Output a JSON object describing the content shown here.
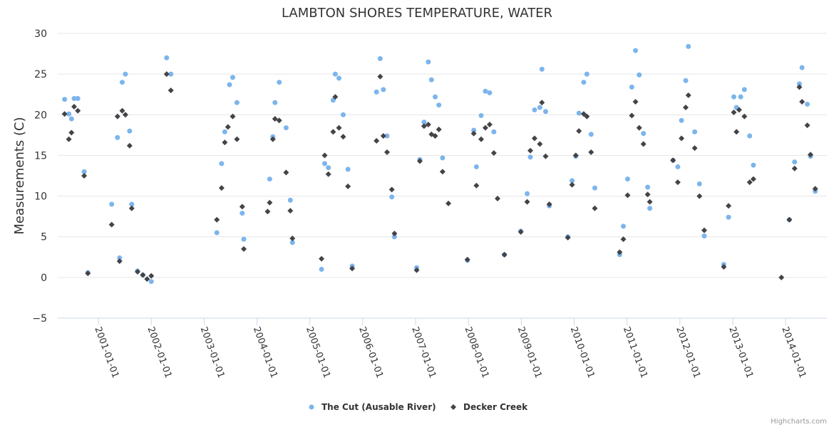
{
  "chart_data": {
    "type": "scatter",
    "title": "LAMBTON SHORES TEMPERATURE, WATER",
    "xlabel": "",
    "ylabel": "Measurements (C)",
    "ylim": [
      -5,
      30
    ],
    "yticks": [
      "30",
      "25",
      "20",
      "15",
      "10",
      "5",
      "0",
      "−5"
    ],
    "ytick_values": [
      30,
      25,
      20,
      15,
      10,
      5,
      0,
      -5
    ],
    "xlim": [
      2000.23,
      2014.78
    ],
    "xticks": [
      "2001-01-01",
      "2002-01-01",
      "2003-01-01",
      "2004-01-01",
      "2005-01-01",
      "2006-01-01",
      "2007-01-01",
      "2008-01-01",
      "2009-01-01",
      "2010-01-01",
      "2011-01-01",
      "2012-01-01",
      "2013-01-01",
      "2014-01-01"
    ],
    "xtick_values": [
      2001,
      2002,
      2003,
      2004,
      2005,
      2006,
      2007,
      2008,
      2009,
      2010,
      2011,
      2012,
      2013,
      2014
    ],
    "grid": true,
    "legend_position": "bottom-center",
    "credits": "Highcharts.com",
    "series": [
      {
        "name": "The Cut (Ausable River)",
        "color": "#7cb5ec",
        "marker": "circle",
        "points": [
          [
            2000.36,
            21.9
          ],
          [
            2000.44,
            20.1
          ],
          [
            2000.49,
            19.5
          ],
          [
            2000.54,
            22.0
          ],
          [
            2000.61,
            22.0
          ],
          [
            2000.73,
            13.0
          ],
          [
            2000.8,
            0.6
          ],
          [
            2001.25,
            9.0
          ],
          [
            2001.36,
            17.2
          ],
          [
            2001.4,
            2.4
          ],
          [
            2001.45,
            24.0
          ],
          [
            2001.51,
            25.0
          ],
          [
            2001.59,
            18.0
          ],
          [
            2001.63,
            9.0
          ],
          [
            2001.74,
            0.8
          ],
          [
            2001.84,
            0.3
          ],
          [
            2002.0,
            -0.5
          ],
          [
            2002.29,
            27.0
          ],
          [
            2002.37,
            25.0
          ],
          [
            2003.24,
            5.5
          ],
          [
            2003.33,
            14.0
          ],
          [
            2003.39,
            17.9
          ],
          [
            2003.48,
            23.7
          ],
          [
            2003.54,
            24.6
          ],
          [
            2003.62,
            21.5
          ],
          [
            2003.72,
            7.9
          ],
          [
            2003.75,
            4.7
          ],
          [
            2004.24,
            12.1
          ],
          [
            2004.3,
            17.3
          ],
          [
            2004.34,
            21.5
          ],
          [
            2004.42,
            24.0
          ],
          [
            2004.55,
            18.4
          ],
          [
            2004.63,
            9.5
          ],
          [
            2004.67,
            4.3
          ],
          [
            2005.22,
            1.0
          ],
          [
            2005.28,
            14.0
          ],
          [
            2005.35,
            13.5
          ],
          [
            2005.44,
            21.8
          ],
          [
            2005.48,
            25.0
          ],
          [
            2005.55,
            24.5
          ],
          [
            2005.63,
            20.0
          ],
          [
            2005.72,
            13.3
          ],
          [
            2005.8,
            1.4
          ],
          [
            2006.26,
            22.8
          ],
          [
            2006.33,
            26.9
          ],
          [
            2006.39,
            23.1
          ],
          [
            2006.46,
            17.4
          ],
          [
            2006.55,
            9.9
          ],
          [
            2006.6,
            5.0
          ],
          [
            2007.02,
            1.2
          ],
          [
            2007.08,
            14.5
          ],
          [
            2007.16,
            19.1
          ],
          [
            2007.24,
            26.5
          ],
          [
            2007.3,
            24.3
          ],
          [
            2007.37,
            22.2
          ],
          [
            2007.44,
            21.2
          ],
          [
            2007.51,
            14.7
          ],
          [
            2007.98,
            2.1
          ],
          [
            2008.1,
            18.1
          ],
          [
            2008.15,
            13.6
          ],
          [
            2008.24,
            19.9
          ],
          [
            2008.32,
            22.9
          ],
          [
            2008.4,
            22.7
          ],
          [
            2008.48,
            17.9
          ],
          [
            2008.68,
            2.8
          ],
          [
            2008.99,
            5.7
          ],
          [
            2009.11,
            10.3
          ],
          [
            2009.17,
            14.8
          ],
          [
            2009.25,
            20.6
          ],
          [
            2009.35,
            20.9
          ],
          [
            2009.39,
            25.6
          ],
          [
            2009.46,
            20.4
          ],
          [
            2009.53,
            8.8
          ],
          [
            2009.88,
            5.0
          ],
          [
            2009.96,
            11.9
          ],
          [
            2010.03,
            14.9
          ],
          [
            2010.09,
            20.2
          ],
          [
            2010.18,
            24.0
          ],
          [
            2010.24,
            25.0
          ],
          [
            2010.32,
            17.6
          ],
          [
            2010.39,
            11.0
          ],
          [
            2010.86,
            2.8
          ],
          [
            2010.93,
            6.3
          ],
          [
            2011.01,
            12.1
          ],
          [
            2011.09,
            23.4
          ],
          [
            2011.16,
            27.9
          ],
          [
            2011.23,
            24.9
          ],
          [
            2011.31,
            17.7
          ],
          [
            2011.39,
            11.1
          ],
          [
            2011.43,
            8.5
          ],
          [
            2011.87,
            14.4
          ],
          [
            2011.96,
            13.6
          ],
          [
            2012.03,
            19.3
          ],
          [
            2012.11,
            24.2
          ],
          [
            2012.16,
            28.4
          ],
          [
            2012.28,
            17.9
          ],
          [
            2012.37,
            11.5
          ],
          [
            2012.46,
            5.1
          ],
          [
            2012.83,
            1.6
          ],
          [
            2012.92,
            7.4
          ],
          [
            2013.02,
            22.2
          ],
          [
            2013.07,
            20.9
          ],
          [
            2013.15,
            22.2
          ],
          [
            2013.22,
            23.1
          ],
          [
            2013.32,
            17.4
          ],
          [
            2013.39,
            13.8
          ],
          [
            2014.07,
            7.1
          ],
          [
            2014.17,
            14.2
          ],
          [
            2014.26,
            23.8
          ],
          [
            2014.31,
            25.8
          ],
          [
            2014.41,
            21.3
          ],
          [
            2014.47,
            14.9
          ],
          [
            2014.56,
            10.6
          ]
        ]
      },
      {
        "name": "Decker Creek",
        "color": "#434348",
        "marker": "diamond",
        "points": [
          [
            2000.36,
            20.1
          ],
          [
            2000.44,
            17.0
          ],
          [
            2000.49,
            17.8
          ],
          [
            2000.54,
            21.0
          ],
          [
            2000.61,
            20.5
          ],
          [
            2000.73,
            12.5
          ],
          [
            2000.8,
            0.5
          ],
          [
            2001.25,
            6.5
          ],
          [
            2001.36,
            19.8
          ],
          [
            2001.4,
            2.0
          ],
          [
            2001.45,
            20.5
          ],
          [
            2001.51,
            20.0
          ],
          [
            2001.59,
            16.2
          ],
          [
            2001.63,
            8.5
          ],
          [
            2001.74,
            0.7
          ],
          [
            2001.84,
            0.3
          ],
          [
            2001.92,
            -0.2
          ],
          [
            2002.0,
            0.2
          ],
          [
            2002.29,
            25.0
          ],
          [
            2002.37,
            23.0
          ],
          [
            2003.24,
            7.1
          ],
          [
            2003.33,
            11.0
          ],
          [
            2003.39,
            16.6
          ],
          [
            2003.45,
            18.5
          ],
          [
            2003.54,
            19.8
          ],
          [
            2003.62,
            17.0
          ],
          [
            2003.72,
            8.7
          ],
          [
            2003.75,
            3.5
          ],
          [
            2004.2,
            8.1
          ],
          [
            2004.24,
            9.2
          ],
          [
            2004.3,
            17.0
          ],
          [
            2004.34,
            19.5
          ],
          [
            2004.42,
            19.3
          ],
          [
            2004.55,
            12.9
          ],
          [
            2004.63,
            8.2
          ],
          [
            2004.67,
            4.8
          ],
          [
            2005.22,
            2.3
          ],
          [
            2005.28,
            15.0
          ],
          [
            2005.35,
            12.7
          ],
          [
            2005.44,
            17.9
          ],
          [
            2005.48,
            22.2
          ],
          [
            2005.55,
            18.4
          ],
          [
            2005.63,
            17.3
          ],
          [
            2005.72,
            11.2
          ],
          [
            2005.8,
            1.1
          ],
          [
            2006.26,
            16.8
          ],
          [
            2006.33,
            24.7
          ],
          [
            2006.39,
            17.4
          ],
          [
            2006.46,
            15.4
          ],
          [
            2006.55,
            10.8
          ],
          [
            2006.6,
            5.4
          ],
          [
            2007.02,
            0.9
          ],
          [
            2007.08,
            14.3
          ],
          [
            2007.16,
            18.6
          ],
          [
            2007.24,
            18.8
          ],
          [
            2007.3,
            17.6
          ],
          [
            2007.37,
            17.4
          ],
          [
            2007.44,
            18.2
          ],
          [
            2007.51,
            13.0
          ],
          [
            2007.62,
            9.1
          ],
          [
            2007.98,
            2.2
          ],
          [
            2008.1,
            17.7
          ],
          [
            2008.15,
            11.3
          ],
          [
            2008.24,
            17.0
          ],
          [
            2008.32,
            18.4
          ],
          [
            2008.4,
            18.8
          ],
          [
            2008.48,
            15.3
          ],
          [
            2008.55,
            9.7
          ],
          [
            2008.68,
            2.8
          ],
          [
            2008.99,
            5.6
          ],
          [
            2009.11,
            9.3
          ],
          [
            2009.17,
            15.6
          ],
          [
            2009.25,
            17.1
          ],
          [
            2009.35,
            16.4
          ],
          [
            2009.39,
            21.5
          ],
          [
            2009.46,
            14.9
          ],
          [
            2009.53,
            9.0
          ],
          [
            2009.88,
            4.9
          ],
          [
            2009.96,
            11.4
          ],
          [
            2010.03,
            15.0
          ],
          [
            2010.09,
            18.0
          ],
          [
            2010.18,
            20.1
          ],
          [
            2010.24,
            19.8
          ],
          [
            2010.32,
            15.4
          ],
          [
            2010.39,
            8.5
          ],
          [
            2010.86,
            3.1
          ],
          [
            2010.93,
            4.7
          ],
          [
            2011.01,
            10.1
          ],
          [
            2011.09,
            19.9
          ],
          [
            2011.16,
            21.6
          ],
          [
            2011.23,
            18.4
          ],
          [
            2011.31,
            16.4
          ],
          [
            2011.39,
            10.2
          ],
          [
            2011.43,
            9.3
          ],
          [
            2011.87,
            14.4
          ],
          [
            2011.96,
            11.7
          ],
          [
            2012.03,
            17.1
          ],
          [
            2012.11,
            20.9
          ],
          [
            2012.16,
            22.4
          ],
          [
            2012.28,
            15.9
          ],
          [
            2012.37,
            10.0
          ],
          [
            2012.46,
            5.8
          ],
          [
            2012.83,
            1.3
          ],
          [
            2012.92,
            8.8
          ],
          [
            2013.02,
            20.3
          ],
          [
            2013.07,
            17.9
          ],
          [
            2013.12,
            20.6
          ],
          [
            2013.22,
            19.8
          ],
          [
            2013.32,
            11.7
          ],
          [
            2013.39,
            12.1
          ],
          [
            2013.92,
            0.0
          ],
          [
            2014.07,
            7.1
          ],
          [
            2014.17,
            13.4
          ],
          [
            2014.26,
            23.4
          ],
          [
            2014.31,
            21.6
          ],
          [
            2014.41,
            18.7
          ],
          [
            2014.47,
            15.1
          ],
          [
            2014.56,
            10.9
          ]
        ]
      }
    ]
  }
}
